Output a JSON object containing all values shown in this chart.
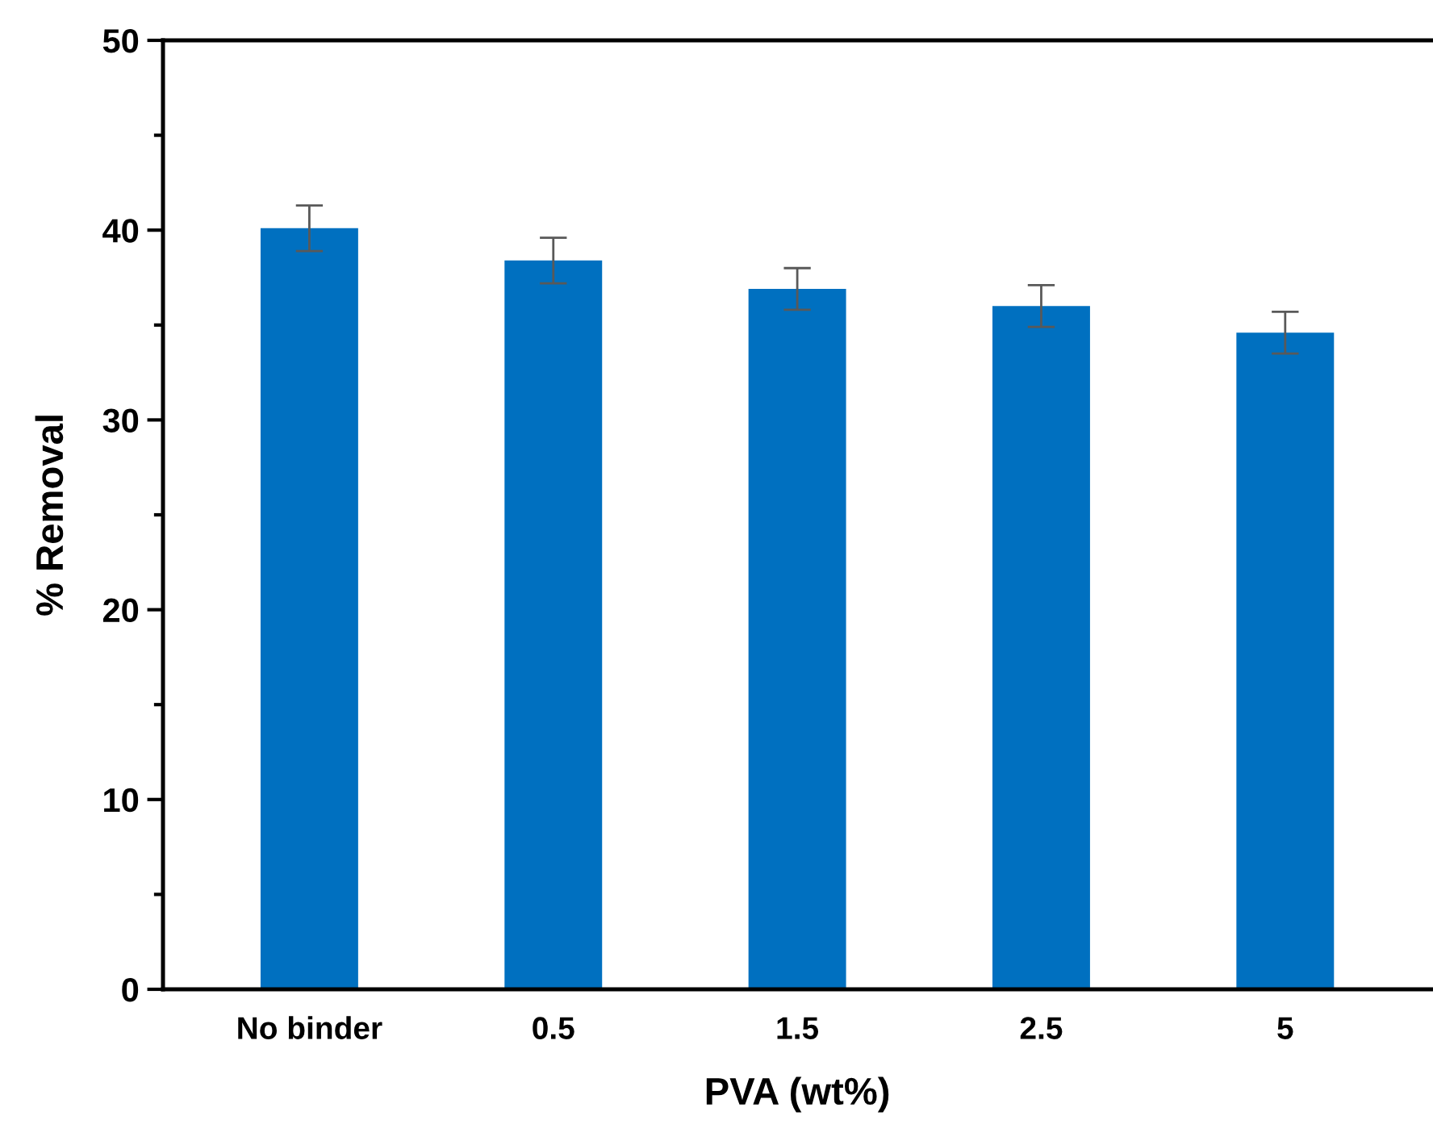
{
  "chart_data": {
    "type": "bar",
    "xlabel": "PVA (wt%)",
    "ylabel": "% Removal",
    "categories": [
      "No binder",
      "0.5",
      "1.5",
      "2.5",
      "5"
    ],
    "values": [
      40.1,
      38.4,
      36.9,
      36.0,
      34.6
    ],
    "errors": [
      1.2,
      1.2,
      1.1,
      1.1,
      1.1
    ],
    "color": "#0070c0",
    "ylim": [
      0,
      50
    ],
    "yticks": [
      0,
      {
        "value": 5,
        "label": null
      },
      10,
      {
        "value": 15,
        "label": null
      },
      20,
      {
        "value": 25,
        "label": null
      },
      30,
      {
        "value": 35,
        "label": null
      },
      40,
      {
        "value": 45,
        "label": null
      },
      50
    ],
    "grid": false,
    "legend": false
  }
}
